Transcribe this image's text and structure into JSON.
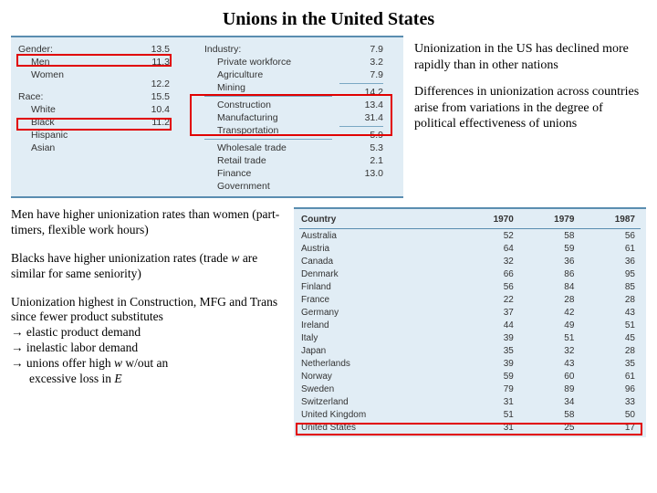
{
  "title": "Unions in the United States",
  "table1": {
    "bg_color": "#e1edf5",
    "border_color": "#5a8db0",
    "highlight_color": "#e10000",
    "gender_header": "Gender:",
    "gender_rows": [
      {
        "label": "Men",
        "value": "13.5"
      },
      {
        "label": "Women",
        "value": "11.3"
      }
    ],
    "race_header": "Race:",
    "race_rows": [
      {
        "label": "White",
        "value": "12.2"
      },
      {
        "label": "Black",
        "value": "15.5"
      },
      {
        "label": "Hispanic",
        "value": "10.4"
      },
      {
        "label": "Asian",
        "value": "11.2"
      }
    ],
    "industry_header": "Industry:",
    "industry_rows": [
      {
        "label": "Private workforce",
        "value": "7.9"
      },
      {
        "label": "Agriculture",
        "value": "3.2"
      },
      {
        "label": "Mining",
        "value": "7.9"
      },
      {
        "label": "Construction",
        "value": "14.2"
      },
      {
        "label": "Manufacturing",
        "value": "13.4"
      },
      {
        "label": "Transportation",
        "value": "31.4"
      },
      {
        "label": "Wholesale trade",
        "value": "5.9"
      },
      {
        "label": "Retail trade",
        "value": "5.3"
      },
      {
        "label": "Finance",
        "value": "2.1"
      },
      {
        "label": "Government",
        "value": "13.0"
      }
    ]
  },
  "right_notes": {
    "p1": "Unionization in the US has declined more rapidly than in other nations",
    "p2": "Differences in unionization across countries arise from variations in the degree of political effectiveness of unions"
  },
  "left_notes": {
    "p1": "Men have higher unionization rates than women (part-timers, flexible work hours)",
    "p2_a": "Blacks have higher unionization rates (trade ",
    "p2_b": " are similar for same seniority)",
    "p2_italic": "w",
    "p3": "Unionization highest in Construction, MFG and Trans since fewer product substitutes",
    "a1": "→ elastic product demand",
    "a2": "→ inelastic labor demand",
    "a3_a": "→ unions offer high ",
    "a3_w": "w",
    "a3_b": " w/out an",
    "a4_a": "excessive loss in ",
    "a4_E": "E"
  },
  "country_table": {
    "headers": [
      "Country",
      "1970",
      "1979",
      "1987"
    ],
    "rows": [
      [
        "Australia",
        "52",
        "58",
        "56"
      ],
      [
        "Austria",
        "64",
        "59",
        "61"
      ],
      [
        "Canada",
        "32",
        "36",
        "36"
      ],
      [
        "Denmark",
        "66",
        "86",
        "95"
      ],
      [
        "Finland",
        "56",
        "84",
        "85"
      ],
      [
        "France",
        "22",
        "28",
        "28"
      ],
      [
        "Germany",
        "37",
        "42",
        "43"
      ],
      [
        "Ireland",
        "44",
        "49",
        "51"
      ],
      [
        "Italy",
        "39",
        "51",
        "45"
      ],
      [
        "Japan",
        "35",
        "32",
        "28"
      ],
      [
        "Netherlands",
        "39",
        "43",
        "35"
      ],
      [
        "Norway",
        "59",
        "60",
        "61"
      ],
      [
        "Sweden",
        "79",
        "89",
        "96"
      ],
      [
        "Switzerland",
        "31",
        "34",
        "33"
      ],
      [
        "United Kingdom",
        "51",
        "58",
        "50"
      ],
      [
        "United States",
        "31",
        "25",
        "17"
      ]
    ]
  }
}
